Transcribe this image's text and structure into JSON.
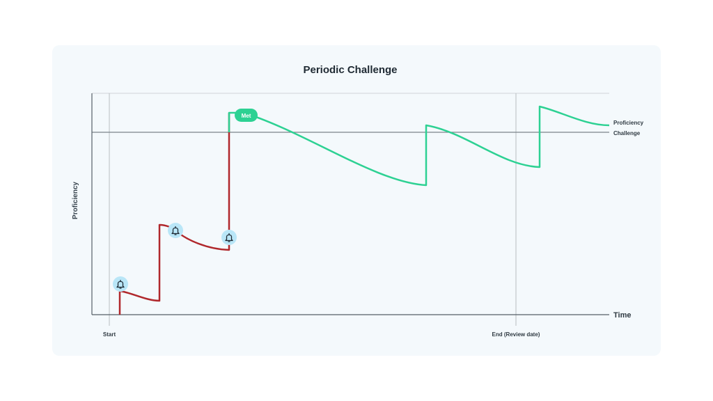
{
  "title": "Periodic Challenge",
  "y_axis_label": "Proficiency",
  "x_axis_label": "Time",
  "x_ticks": {
    "start": "Start",
    "end": "End (Review date)"
  },
  "lines": {
    "proficiency": "Proficiency",
    "challenge": "Challenge"
  },
  "badge": "Met",
  "markers": [
    "bell-icon",
    "bell-icon",
    "bell-icon"
  ],
  "colors": {
    "below": "#b0282c",
    "above": "#2dd193",
    "badge": "#2dd193",
    "bell_bg": "#b9e6f7",
    "axis": "#555f66",
    "grid": "#c4c9cd"
  }
}
